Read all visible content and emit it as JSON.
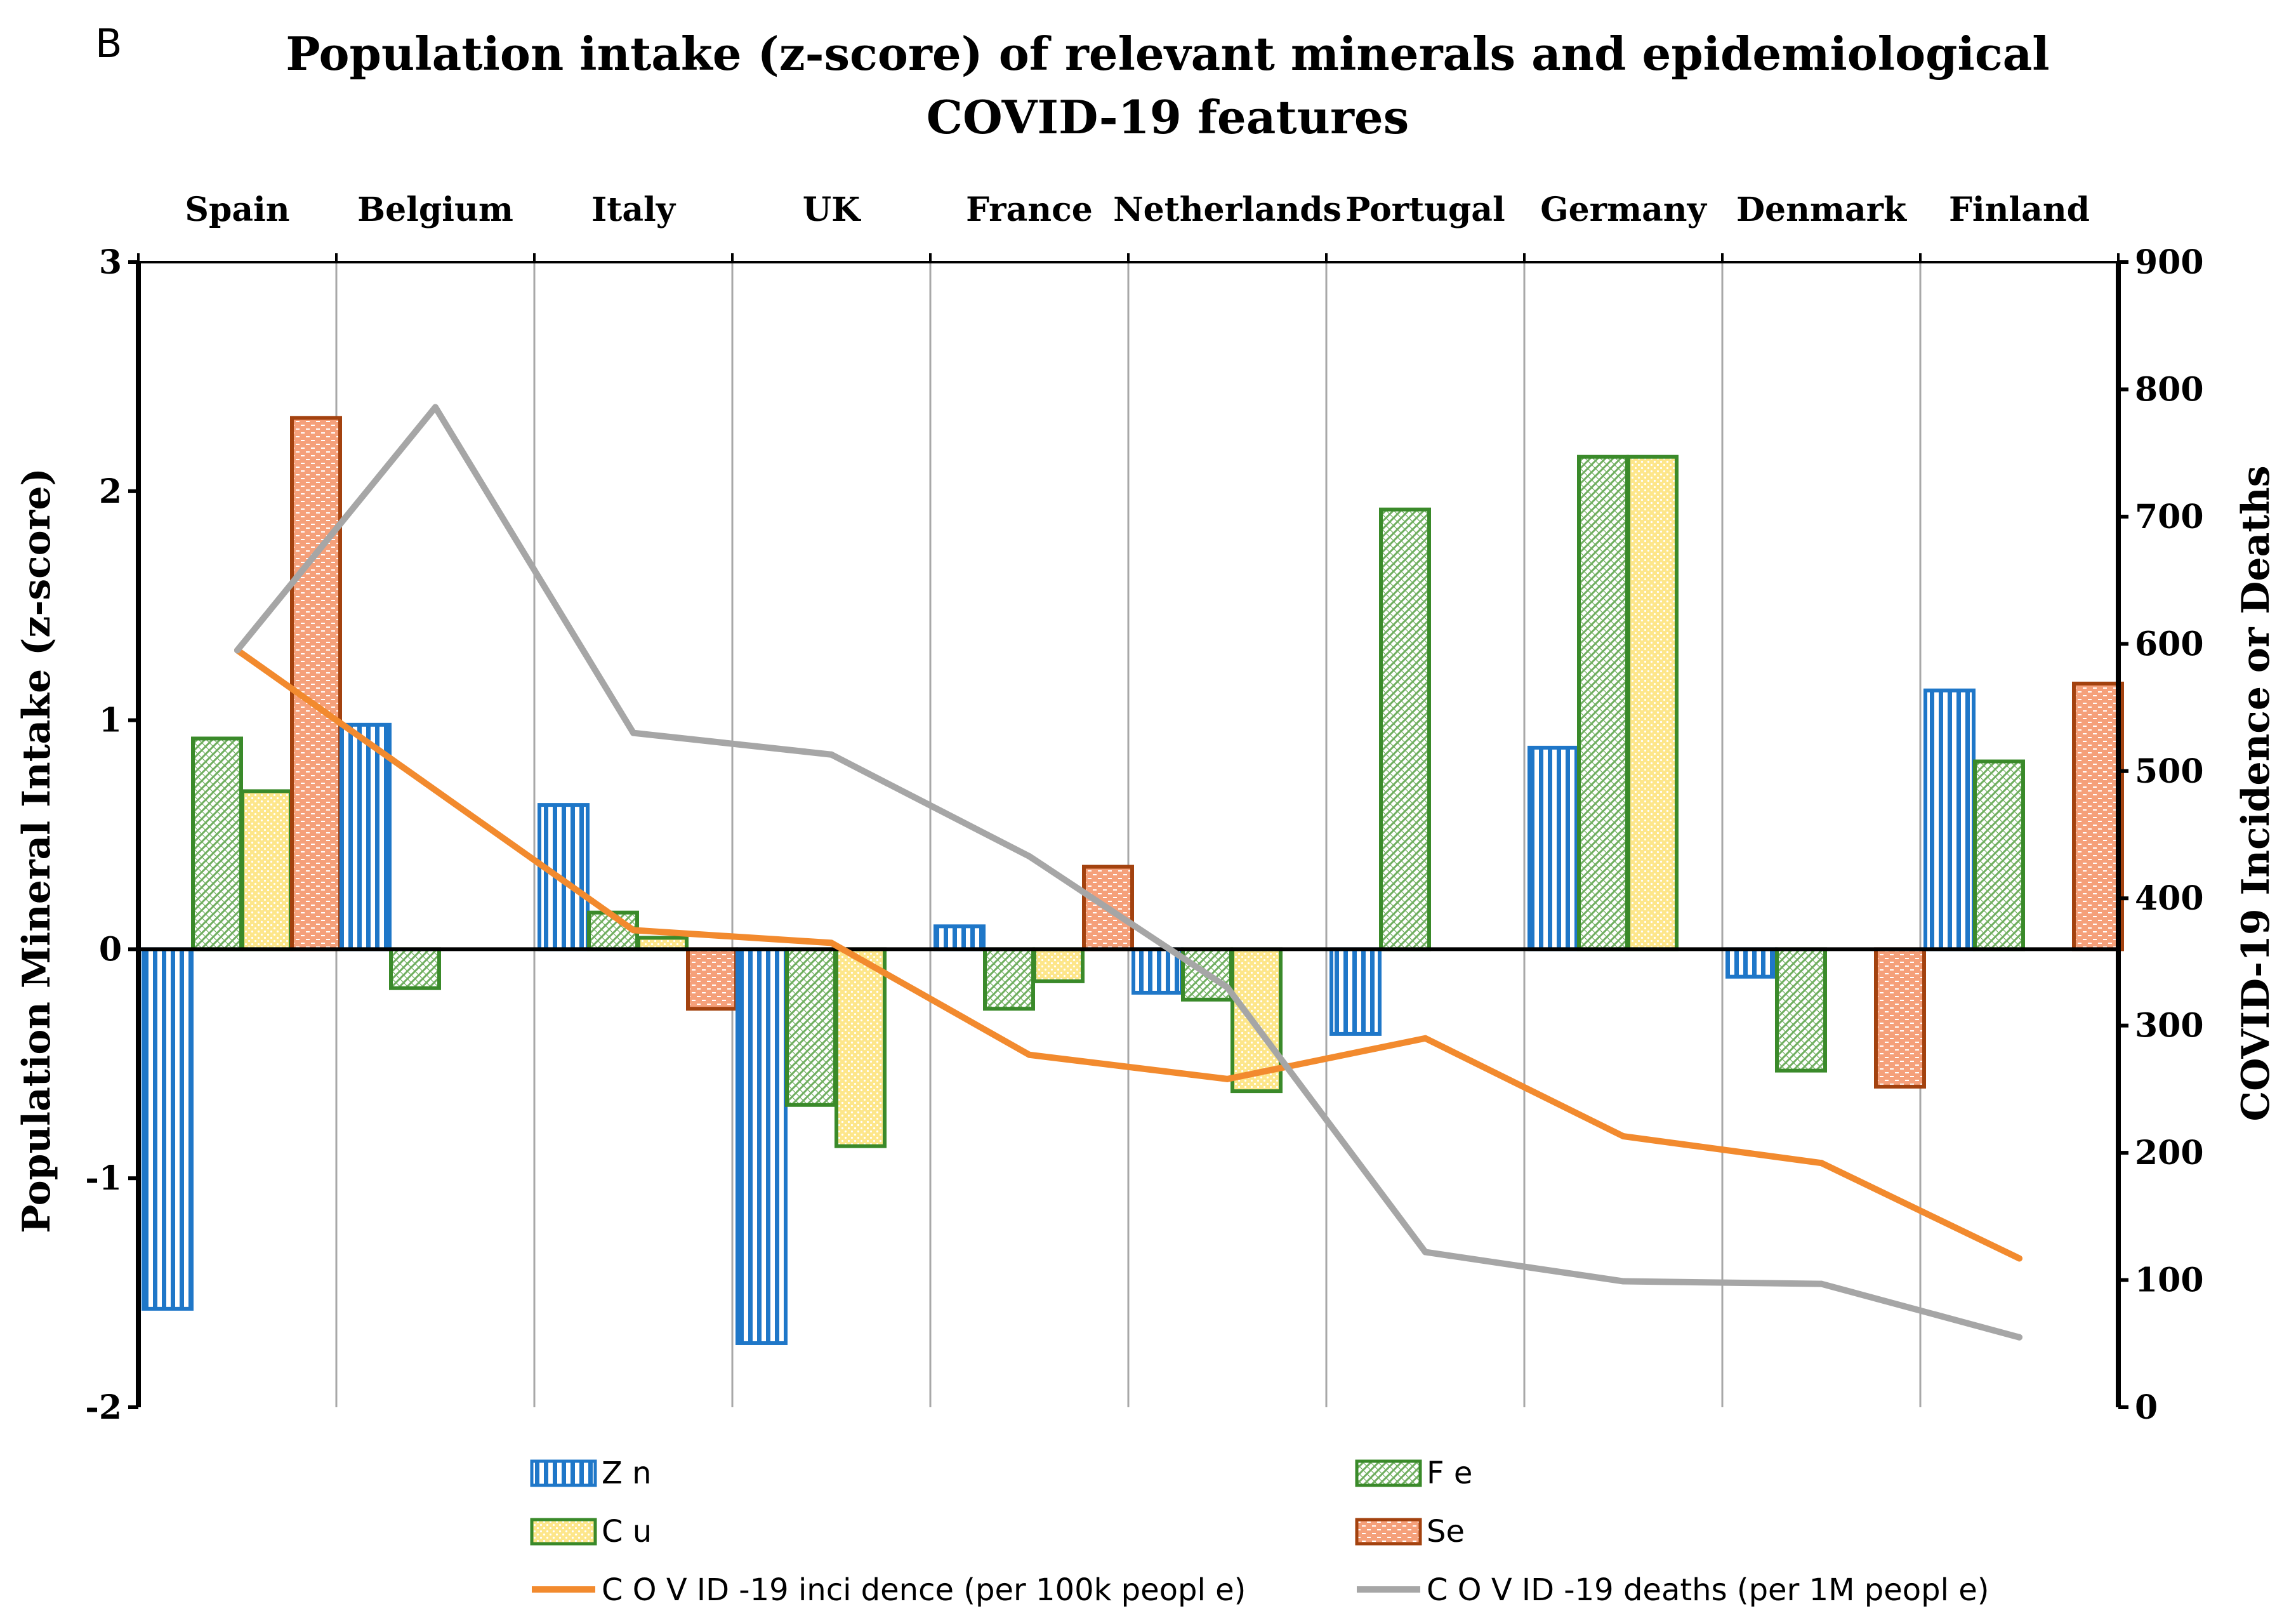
{
  "panel_label": "B",
  "chart_data": {
    "type": "bar",
    "title_line1": "Population intake (z-score) of relevant minerals and epidemiological",
    "title_line2": "COVID-19 features",
    "categories": [
      "Spain",
      "Belgium",
      "Italy",
      "UK",
      "France",
      "Netherlands",
      "Portugal",
      "Germany",
      "Denmark",
      "Finland"
    ],
    "ylabel": "Population Mineral Intake (z-score)",
    "y2label": "COVID-19  Incidence or Deaths",
    "ylim": [
      -2,
      3
    ],
    "y2lim": [
      0,
      900
    ],
    "yticks": [
      "3",
      "2",
      "1",
      "0",
      "-1",
      "-2"
    ],
    "y2ticks": [
      "900",
      "800",
      "700",
      "600",
      "500",
      "400",
      "300",
      "200",
      "100",
      "0"
    ],
    "series": [
      {
        "name": "Zn",
        "type": "bar",
        "color": "#1f77c8",
        "fill": "#1f77c8",
        "pattern": "vertical-lines",
        "values": [
          -1.57,
          0.98,
          0.63,
          -1.72,
          0.1,
          -0.19,
          -0.37,
          0.88,
          -0.12,
          1.13
        ]
      },
      {
        "name": "Fe",
        "type": "bar",
        "color": "#3a8a2a",
        "fill": "#6fae5f",
        "pattern": "diagonal-hatch",
        "values": [
          0.92,
          -0.17,
          0.16,
          -0.68,
          -0.26,
          -0.22,
          1.92,
          2.15,
          -0.53,
          0.82
        ]
      },
      {
        "name": "Cu",
        "type": "bar",
        "color": "#3a8a2a",
        "fill": "#fde68a",
        "pattern": "dots",
        "values": [
          0.69,
          0.0,
          0.05,
          -0.86,
          -0.14,
          -0.62,
          0.0,
          2.15,
          0.0,
          0.0
        ]
      },
      {
        "name": "Se",
        "type": "bar",
        "color": "#a3420f",
        "fill": "#f5a07a",
        "pattern": "dashes",
        "values": [
          2.32,
          0.0,
          -0.26,
          0.0,
          0.36,
          0.0,
          0.0,
          0.0,
          -0.6,
          1.16
        ]
      },
      {
        "name": "COVID-19 incidence (per 100k people)",
        "type": "line",
        "axis": "right",
        "color": "#f28a2e",
        "values": [
          595,
          485,
          375,
          365,
          277,
          258,
          290,
          213,
          192,
          117
        ]
      },
      {
        "name": "COVID-19 deaths (per 1M people)",
        "type": "line",
        "axis": "right",
        "color": "#a6a6a6",
        "values": [
          595,
          786,
          530,
          513,
          433,
          330,
          122,
          99,
          97,
          55
        ]
      }
    ],
    "legend_position": "bottom",
    "legend": {
      "zn": "Z n",
      "fe": "F e",
      "cu": "C u",
      "se": "Se",
      "incidence": "C O V ID -19 inci dence (per 100k peopl e)",
      "deaths": "C O V ID -19 deaths (per 1M  peopl e)"
    }
  }
}
